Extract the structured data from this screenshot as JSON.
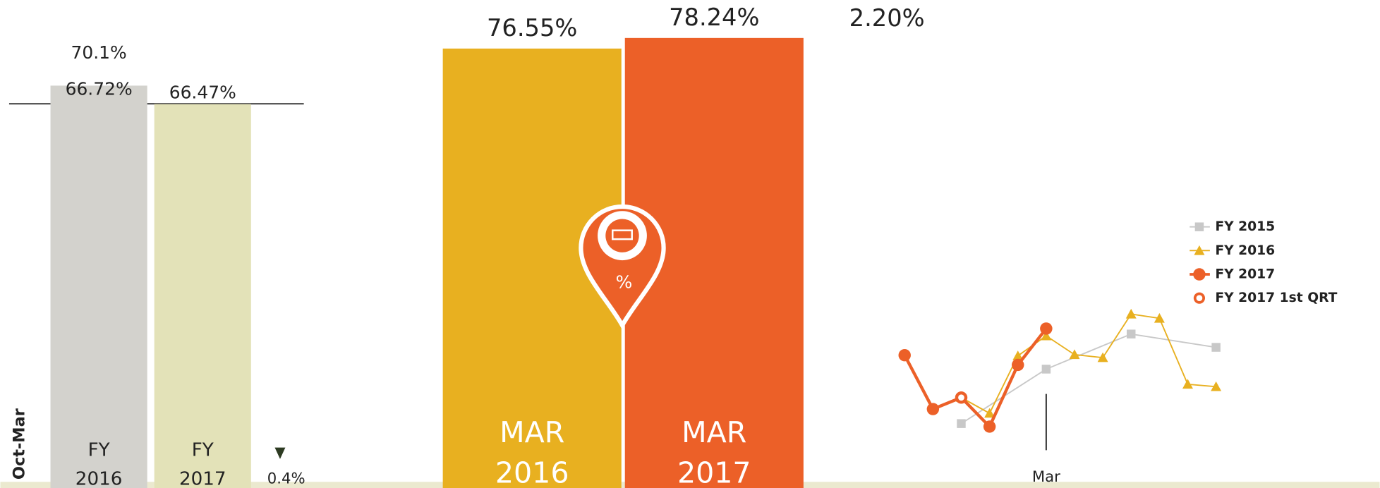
{
  "chart_data": [
    {
      "type": "bar",
      "axis_label": "Oct-Mar",
      "annotation": "70.1%",
      "categories": [
        "FY 2016",
        "FY 2017"
      ],
      "values": [
        66.72,
        66.47
      ],
      "value_labels": [
        "66.72%",
        "66.47%"
      ],
      "colors": [
        "#d3d2cd",
        "#e3e2b8"
      ],
      "ylim": [
        61.27,
        67.88
      ],
      "change_label": "0.4%",
      "change_direction": "down"
    },
    {
      "type": "bar",
      "categories": [
        "MAR 2016",
        "MAR 2017"
      ],
      "values": [
        76.55,
        78.24
      ],
      "value_labels": [
        "76.55%",
        "78.24%"
      ],
      "colors": [
        "#e8b020",
        "#ec6028"
      ],
      "ylim": [
        6.4,
        84.3
      ],
      "change_label": "2.20%",
      "icon_label": "%"
    },
    {
      "type": "line",
      "xlim": [
        0,
        11
      ],
      "xticks": [
        {
          "value": 5,
          "label": "Mar"
        }
      ],
      "ylim": [
        60,
        85
      ],
      "legend": "right",
      "series": [
        {
          "name": "FY 2015",
          "color": "#c8c8c8",
          "marker": "square",
          "x": [
            2,
            5,
            8,
            11
          ],
          "values": [
            64.4,
            73.4,
            79.2,
            77.0
          ]
        },
        {
          "name": "FY 2016",
          "color": "#e8b020",
          "marker": "triangle",
          "x": [
            2,
            3,
            4,
            5,
            6,
            7,
            8,
            9,
            10,
            11
          ],
          "values": [
            68.7,
            66.1,
            75.6,
            78.9,
            75.8,
            75.3,
            82.5,
            81.8,
            70.9,
            70.5
          ]
        },
        {
          "name": "FY 2017",
          "color": "#ec6028",
          "marker": "circle",
          "x": [
            0,
            1,
            2,
            3,
            4,
            5
          ],
          "values": [
            75.7,
            66.8,
            68.7,
            63.9,
            74.1,
            80.1
          ]
        },
        {
          "name": "FY 2017 1st QRT",
          "color": "#ec6028",
          "marker": "ring",
          "x": [
            2
          ],
          "values": [
            68.7
          ]
        }
      ]
    }
  ]
}
